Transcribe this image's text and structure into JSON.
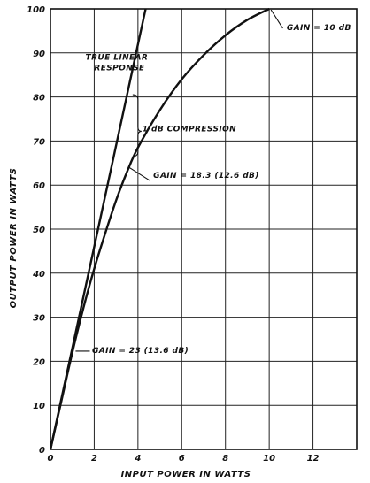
{
  "chart_data": {
    "type": "line",
    "title": "",
    "xlabel": "INPUT POWER IN WATTS",
    "ylabel": "OUTPUT POWER IN WATTS",
    "xlim": [
      0,
      14
    ],
    "ylim": [
      0,
      100
    ],
    "x_ticks": [
      "0",
      "2",
      "4",
      "6",
      "8",
      "10",
      "12"
    ],
    "y_ticks": [
      "0",
      "10",
      "20",
      "30",
      "40",
      "50",
      "60",
      "70",
      "80",
      "90",
      "100"
    ],
    "grid": true,
    "series": [
      {
        "name": "TRUE LINEAR RESPONSE",
        "points": [
          [
            0,
            0
          ],
          [
            4.35,
            100
          ]
        ]
      },
      {
        "name": "",
        "points": [
          [
            0,
            0
          ],
          [
            0.5,
            11
          ],
          [
            1,
            22
          ],
          [
            1.5,
            32
          ],
          [
            2,
            41
          ],
          [
            2.5,
            49
          ],
          [
            3,
            56.5
          ],
          [
            3.5,
            63
          ],
          [
            4,
            68.5
          ],
          [
            5,
            77
          ],
          [
            6,
            84
          ],
          [
            7,
            89.5
          ],
          [
            8,
            94
          ],
          [
            9,
            97.5
          ],
          [
            10,
            100
          ]
        ]
      }
    ],
    "annotations": [
      {
        "text": "TRUE LINEAR",
        "x": 1.6,
        "y": 88.5
      },
      {
        "text": "RESPONSE",
        "x": 2.0,
        "y": 86.0
      },
      {
        "text": "GAIN = 10 dB",
        "x": 10.8,
        "y": 95.2
      },
      {
        "text": "1 dB COMPRESSION",
        "x": 4.2,
        "y": 72.2
      },
      {
        "text": "GAIN = 18.3 (12.6 dB)",
        "x": 4.7,
        "y": 61.6
      },
      {
        "text": "GAIN = 23  (13.6 dB)",
        "x": 1.9,
        "y": 21.9
      }
    ]
  }
}
